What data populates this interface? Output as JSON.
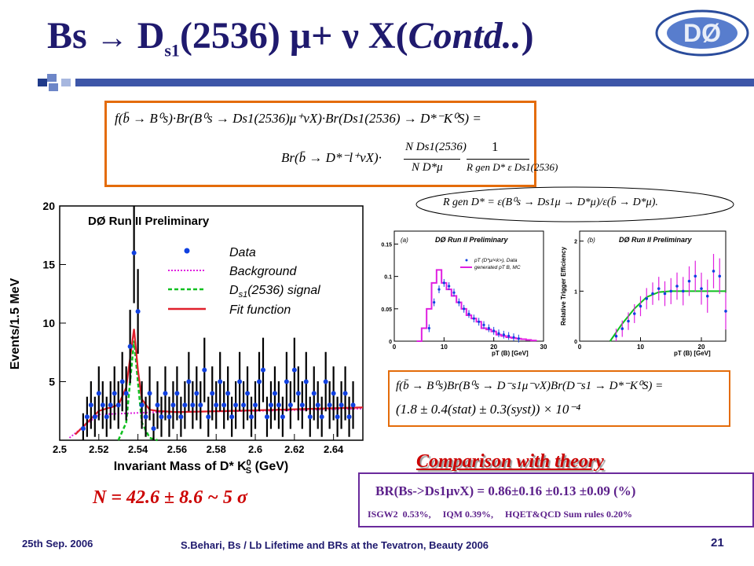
{
  "slide": {
    "title_prefix": "Bs",
    "title_arrow": "→",
    "title_particle": "D",
    "title_sub": "s1",
    "title_middle": "(2536) μ+ ν X(",
    "title_contd": "Contd..",
    "title_close": ")",
    "logo_text": "DØ"
  },
  "equation1": {
    "line1": "f(b̄ → B⁰s)·Br(B⁰s → Ds1(2536)μ⁺νX)·Br(Ds1(2536) → D*⁻K⁰S) =",
    "line2_left": "Br(b̄ → D*⁻l⁺νX)·",
    "frac_num": "N Ds1(2536)",
    "frac_den": "N D*μ",
    "frac2_num": "1",
    "frac2_den": "R gen D* ε Ds1(2536)"
  },
  "rgen_eq": "R gen D* = ε(B⁰s → Ds1μ → D*μ)/ε(b̄ → D*μ).",
  "main_plot": {
    "title": "DØ Run II Preliminary",
    "ylabel": "Events/1.5 MeV",
    "xlabel": "Invariant Mass of D* K",
    "xlabel_sub": "S",
    "xlabel_sup": "0",
    "xlabel_unit": " (GeV)",
    "legend": [
      "Data",
      "Background",
      "D",
      "s1",
      "(2536) signal",
      "Fit function"
    ]
  },
  "plot_a": {
    "panel": "(a)",
    "title": "DØ Run II Preliminary",
    "legend1": "pT (D*μ/<k>), Data",
    "legend2": "generated pT B, MC",
    "xlabel": "pT (B) [GeV]"
  },
  "plot_b": {
    "panel": "(b)",
    "title": "DØ Run II Preliminary",
    "ylabel": "Relative Trigger Efficiency",
    "xlabel": "pT (B) [GeV]"
  },
  "equation2": {
    "line1": "f(b̄ → B⁰s)Br(B⁰s → D⁻s1μ⁻νX)Br(D⁻s1 → D*⁻K⁰S) =",
    "line2": "(1.8 ± 0.4(stat) ± 0.3(syst)) × 10⁻⁴"
  },
  "n_events": "N = 42.6 ± 8.6   ~ 5 σ",
  "theory": {
    "heading": "Comparison with theory",
    "br_line": "BR(Bs->Ds1μνX) = 0.86±0.16 ±0.13 ±0.09 (%)",
    "models": "ISGW2  0.53%,     IQM 0.39%,     HQET&QCD Sum rules 0.20%"
  },
  "footer": {
    "date": "25th Sep. 2006",
    "center": "S.Behari, Bs / Lb Lifetime and BRs at the Tevatron, Beauty 2006",
    "page": "21"
  },
  "chart_data": [
    {
      "type": "scatter",
      "title": "DØ Run II Preliminary",
      "xlabel": "Invariant Mass of D* K0S (GeV)",
      "ylabel": "Events/1.5 MeV",
      "xlim": [
        2.5,
        2.655
      ],
      "ylim": [
        0,
        20
      ],
      "x_ticks": [
        "2.5",
        "2.52",
        "2.54",
        "2.56",
        "2.58",
        "2.6",
        "2.62",
        "2.64"
      ],
      "y_ticks": [
        "5",
        "10",
        "15",
        "20"
      ],
      "series": [
        {
          "name": "Data",
          "x": [
            2.512,
            2.514,
            2.516,
            2.518,
            2.52,
            2.522,
            2.524,
            2.526,
            2.528,
            2.53,
            2.532,
            2.534,
            2.536,
            2.538,
            2.54,
            2.542,
            2.544,
            2.546,
            2.548,
            2.55,
            2.552,
            2.554,
            2.556,
            2.558,
            2.56,
            2.562,
            2.564,
            2.566,
            2.568,
            2.57,
            2.572,
            2.574,
            2.576,
            2.578,
            2.58,
            2.582,
            2.584,
            2.586,
            2.588,
            2.59,
            2.592,
            2.594,
            2.596,
            2.598,
            2.6,
            2.602,
            2.604,
            2.606,
            2.608,
            2.61,
            2.612,
            2.614,
            2.616,
            2.618,
            2.62,
            2.622,
            2.624,
            2.626,
            2.628,
            2.63,
            2.632,
            2.634,
            2.636,
            2.638,
            2.64,
            2.642,
            2.644,
            2.646,
            2.648,
            2.65
          ],
          "y": [
            1,
            2,
            3,
            2,
            4,
            3,
            2,
            3,
            4,
            3,
            5,
            4,
            8,
            16,
            11,
            3,
            2,
            4,
            1,
            3,
            2,
            4,
            2,
            3,
            4,
            2,
            3,
            5,
            3,
            4,
            3,
            6,
            2,
            4,
            3,
            5,
            3,
            4,
            2,
            3,
            5,
            3,
            4,
            2,
            3,
            5,
            6,
            2,
            3,
            4,
            3,
            2,
            5,
            3,
            6,
            4,
            3,
            5,
            2,
            4,
            3,
            2,
            5,
            3,
            4,
            2,
            3,
            4,
            2,
            3
          ]
        },
        {
          "name": "Fit function",
          "x": [
            2.508,
            2.52,
            2.53,
            2.534,
            2.536,
            2.538,
            2.54,
            2.542,
            2.546,
            2.55,
            2.56,
            2.6,
            2.655
          ],
          "y": [
            0.5,
            2.5,
            3,
            4.5,
            7,
            9.5,
            6,
            3.5,
            2.6,
            2.5,
            2.4,
            2.55,
            2.8
          ]
        },
        {
          "name": "D s1(2536) signal",
          "x": [
            2.53,
            2.534,
            2.536,
            2.538,
            2.54,
            2.542,
            2.546,
            2.55
          ],
          "y": [
            0,
            1.5,
            5,
            8.5,
            5,
            1.5,
            0.2,
            0
          ]
        },
        {
          "name": "Background",
          "x": [
            2.505,
            2.52,
            2.55,
            2.6,
            2.655
          ],
          "y": [
            0.2,
            2.2,
            2.4,
            2.5,
            2.7
          ]
        }
      ]
    },
    {
      "type": "bar",
      "title": "DØ Run II Preliminary",
      "xlabel": "pT (B) [GeV]",
      "xlim": [
        0,
        30
      ],
      "ylim": [
        0,
        0.17
      ],
      "x_ticks": [
        "0",
        "10",
        "20",
        "30"
      ],
      "y_ticks": [
        "0",
        "0.05",
        "0.1",
        "0.15"
      ],
      "series": [
        {
          "name": "generated pT B, MC",
          "x": [
            5,
            6,
            7,
            8,
            9,
            10,
            11,
            12,
            13,
            14,
            15,
            16,
            17,
            18,
            19,
            20,
            21,
            22,
            23,
            24,
            25,
            26,
            27,
            28
          ],
          "values": [
            0.0,
            0.02,
            0.05,
            0.09,
            0.11,
            0.09,
            0.08,
            0.07,
            0.06,
            0.05,
            0.04,
            0.035,
            0.03,
            0.02,
            0.018,
            0.015,
            0.01,
            0.008,
            0.006,
            0.005,
            0.004,
            0.003,
            0.002,
            0.001
          ]
        },
        {
          "name": "pT (D*μ/<k>), Data",
          "x": [
            7,
            8,
            9,
            10,
            11,
            12,
            13,
            14,
            15,
            16,
            17,
            18,
            19,
            20,
            21,
            22,
            23,
            24,
            25
          ],
          "values": [
            0.02,
            0.06,
            0.08,
            0.09,
            0.085,
            0.075,
            0.06,
            0.05,
            0.042,
            0.035,
            0.03,
            0.025,
            0.02,
            0.016,
            0.012,
            0.01,
            0.008,
            0.006,
            0.004
          ]
        }
      ]
    },
    {
      "type": "scatter",
      "title": "DØ Run II Preliminary",
      "xlabel": "pT (B) [GeV]",
      "ylabel": "Relative Trigger Efficiency",
      "xlim": [
        0,
        24
      ],
      "ylim": [
        0,
        2.2
      ],
      "x_ticks": [
        "0",
        "10",
        "20"
      ],
      "y_ticks": [
        "0",
        "1",
        "2"
      ],
      "series": [
        {
          "name": "Data",
          "x": [
            6,
            7,
            8,
            9,
            10,
            11,
            12,
            13,
            14,
            15,
            16,
            17,
            18,
            19,
            20,
            21,
            22,
            23,
            24
          ],
          "y": [
            0.1,
            0.25,
            0.4,
            0.55,
            0.7,
            0.85,
            0.95,
            1.05,
            0.95,
            1.0,
            1.1,
            1.0,
            1.2,
            1.3,
            1.05,
            0.9,
            1.4,
            1.3,
            0.6
          ]
        },
        {
          "name": "Fit",
          "x": [
            5,
            7,
            9,
            11,
            13,
            15,
            20,
            24
          ],
          "y": [
            0,
            0.35,
            0.65,
            0.88,
            0.98,
            1.0,
            1.0,
            1.0
          ]
        }
      ]
    }
  ]
}
